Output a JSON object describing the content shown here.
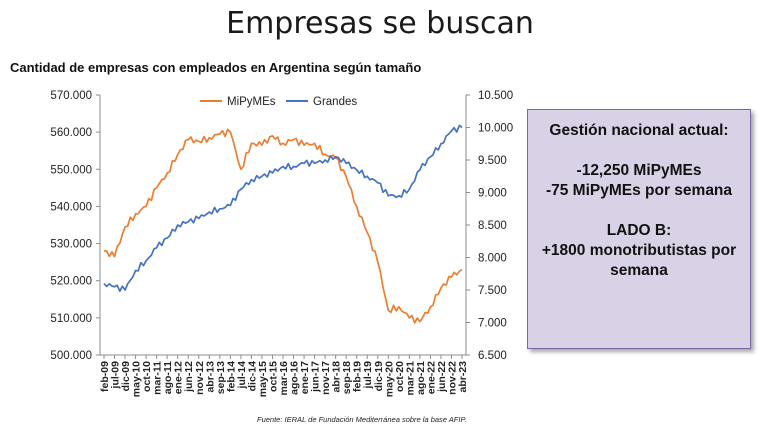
{
  "title": "Empresas se buscan",
  "subtitle": "Cantidad de empresas con empleados en Argentina según tamaño",
  "source": "Fuente: IERAL de Fundación Mediterránea sobre la base AFIP.",
  "infobox": {
    "heading": "Gestión nacional actual:",
    "line1": "-12,250 MiPyMEs",
    "line2": "-75 MiPyMEs por semana",
    "heading2": "LADO B:",
    "line3": "+1800 monotributistas por",
    "line4": "semana"
  },
  "colors": {
    "mipymes": "#ed7d31",
    "grandes": "#4472c4",
    "box_bg": "#d9d2e6"
  },
  "chart_data": {
    "type": "line",
    "xlabel": "",
    "ylabel": "",
    "legend": [
      "MiPyMEs",
      "Grandes"
    ],
    "legend_position": "top",
    "grid": false,
    "ylim_left": [
      500000,
      570000
    ],
    "ylim_right": [
      6500,
      10500
    ],
    "yticks_left": [
      "570.000",
      "560.000",
      "550.000",
      "540.000",
      "530.000",
      "520.000",
      "510.000",
      "500.000"
    ],
    "yticks_right": [
      "10.500",
      "10.000",
      "9.500",
      "9.000",
      "8.500",
      "8.000",
      "7.500",
      "7.000",
      "6.500"
    ],
    "x_tick_labels": [
      "feb-09",
      "jul-09",
      "dic-09",
      "may-10",
      "oct-10",
      "mar-11",
      "ago-11",
      "ene-12",
      "jun-12",
      "nov-12",
      "abr-13",
      "sep-13",
      "feb-14",
      "jul-14",
      "dic-14",
      "may-15",
      "oct-15",
      "mar-16",
      "ago-16",
      "ene-17",
      "jun-17",
      "nov-17",
      "abr-18",
      "sep-18",
      "feb-19",
      "jul-19",
      "dic-19",
      "may-20",
      "oct-20",
      "mar-21",
      "ago-21",
      "ene-22",
      "jun-22",
      "nov-22",
      "abr-23"
    ],
    "series": [
      {
        "name": "MiPyMEs",
        "axis": "left",
        "values": [
          528000,
          526500,
          534500,
          538000,
          540000,
          545000,
          549000,
          554000,
          558000,
          557500,
          558500,
          559500,
          560000,
          550000,
          557000,
          556500,
          559000,
          557000,
          558000,
          556500,
          557000,
          554000,
          553000,
          548000,
          540000,
          533000,
          525000,
          512000,
          513000,
          510000,
          509000,
          513000,
          518000,
          521000,
          523000
        ]
      },
      {
        "name": "Grandes",
        "axis": "right",
        "values": [
          7600,
          7550,
          7500,
          7800,
          7950,
          8150,
          8300,
          8500,
          8550,
          8600,
          8700,
          8750,
          8800,
          9050,
          9200,
          9250,
          9300,
          9400,
          9400,
          9450,
          9450,
          9500,
          9550,
          9450,
          9350,
          9250,
          9150,
          8950,
          8950,
          9050,
          9350,
          9550,
          9750,
          9950,
          10000
        ]
      }
    ]
  }
}
